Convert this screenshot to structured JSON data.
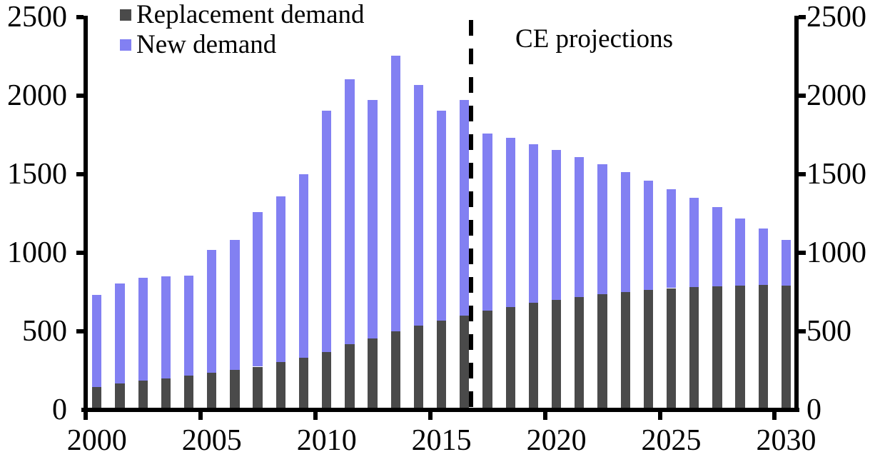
{
  "legend": {
    "items": [
      {
        "label": "Replacement demand",
        "color": "#4a4a4a"
      },
      {
        "label": "New demand",
        "color": "#8280f2"
      }
    ]
  },
  "annotation": {
    "label": "CE projections"
  },
  "chart_data": {
    "type": "bar",
    "stacked": true,
    "title": "",
    "xlabel": "",
    "ylabel": "",
    "x": [
      2000,
      2001,
      2002,
      2003,
      2004,
      2005,
      2006,
      2007,
      2008,
      2009,
      2010,
      2011,
      2012,
      2013,
      2014,
      2015,
      2016,
      2017,
      2018,
      2019,
      2020,
      2021,
      2022,
      2023,
      2024,
      2025,
      2026,
      2027,
      2028,
      2029,
      2030
    ],
    "series": [
      {
        "name": "Replacement demand",
        "color": "#4a4a4a",
        "values": [
          145,
          170,
          185,
          200,
          220,
          235,
          255,
          275,
          305,
          330,
          370,
          420,
          455,
          500,
          535,
          570,
          600,
          630,
          655,
          680,
          700,
          720,
          735,
          750,
          765,
          775,
          780,
          785,
          790,
          795,
          790
        ]
      },
      {
        "name": "New demand",
        "color": "#8280f2",
        "values": [
          585,
          635,
          655,
          650,
          635,
          785,
          825,
          985,
          1055,
          1170,
          1535,
          1685,
          1520,
          1755,
          1535,
          1335,
          1375,
          1130,
          1075,
          1010,
          955,
          890,
          830,
          765,
          695,
          630,
          570,
          505,
          430,
          360,
          290
        ]
      }
    ],
    "totals": [
      730,
      805,
      840,
      850,
      855,
      1020,
      1080,
      1260,
      1360,
      1500,
      1905,
      2105,
      1975,
      2255,
      2070,
      1905,
      1975,
      1760,
      1730,
      1690,
      1655,
      1610,
      1565,
      1515,
      1460,
      1405,
      1350,
      1290,
      1220,
      1155,
      1080
    ],
    "ylim": [
      0,
      2500
    ],
    "yticks": [
      0,
      500,
      1000,
      1500,
      2000,
      2500
    ],
    "yticks_sides": [
      "left",
      "right"
    ],
    "xticks": [
      2000,
      2005,
      2010,
      2015,
      2020,
      2025,
      2030
    ],
    "grid": false,
    "legend_position": "top-left",
    "annotation": "CE projections",
    "projection_divider_after_year": 2016,
    "divider_style": "dashed",
    "axis_color": "#000000",
    "background_color": "#ffffff"
  }
}
